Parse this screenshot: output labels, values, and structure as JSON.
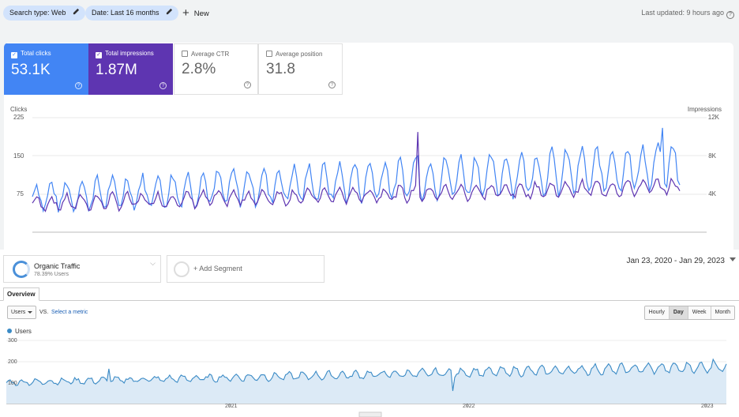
{
  "toolbar": {
    "chips": [
      {
        "label": "Search type: Web",
        "icon": "pencil-icon"
      },
      {
        "label": "Date: Last 16 months",
        "icon": "pencil-icon"
      }
    ],
    "new_label": "New",
    "last_updated": "Last updated: 9 hours ago"
  },
  "metrics": [
    {
      "label": "Total clicks",
      "value": "53.1K",
      "checked": true,
      "color": "#4285f4"
    },
    {
      "label": "Total impressions",
      "value": "1.87M",
      "checked": true,
      "color": "#5e35b1"
    },
    {
      "label": "Average CTR",
      "value": "2.8%",
      "checked": false
    },
    {
      "label": "Average position",
      "value": "31.8",
      "checked": false
    }
  ],
  "performance_chart": {
    "left_axis_title": "Clicks",
    "right_axis_title": "Impressions",
    "left_ticks": [
      "225",
      "150",
      "75"
    ],
    "right_ticks": [
      "12K",
      "8K",
      "4K"
    ]
  },
  "analytics": {
    "segment": {
      "name": "Organic Traffic",
      "sub": "78.39% Users"
    },
    "add_segment": "+ Add Segment",
    "date_range": "Jan 23, 2020 - Jan 29, 2023",
    "tab": "Overview",
    "metric_select": "Users",
    "vs_label": "VS.",
    "select_metric": "Select a metric",
    "granularity": [
      "Hourly",
      "Day",
      "Week",
      "Month"
    ],
    "granularity_selected": "Day",
    "legend": "Users",
    "y_ticks": [
      "300",
      "200",
      "100"
    ],
    "x_ticks": [
      "2021",
      "2022",
      "2023"
    ]
  },
  "chart_data": [
    {
      "type": "line",
      "x": "daily, Oct 2021 - Jan 2023",
      "series": [
        {
          "name": "Clicks",
          "axis": "left",
          "color": "#4285f4",
          "typical_range": [
            60,
            190
          ],
          "max": 205
        },
        {
          "name": "Impressions",
          "axis": "right",
          "color": "#5e35b1",
          "typical_range": [
            2800,
            5800
          ],
          "max": 10500
        }
      ],
      "ylim_left": [
        0,
        225
      ],
      "ylim_right": [
        0,
        12000
      ]
    },
    {
      "type": "area",
      "series": [
        {
          "name": "Users",
          "color": "#3b8bc6",
          "start": 100,
          "end": 175,
          "max": 210
        }
      ],
      "x_ticks": [
        "2021",
        "2022",
        "2023"
      ],
      "ylim": [
        0,
        300
      ]
    }
  ]
}
